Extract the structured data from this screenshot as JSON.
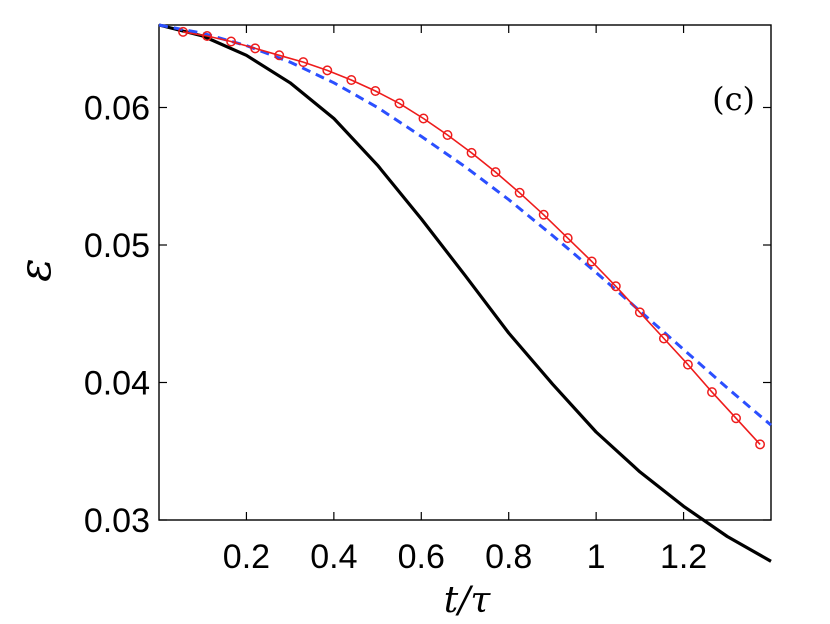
{
  "chart_data": {
    "type": "line",
    "xlabel": "t/τ",
    "ylabel": "ε",
    "annotation": "(c)",
    "xlim": [
      0,
      1.4
    ],
    "ylim": [
      0.03,
      0.066
    ],
    "xticks": [
      0.2,
      0.4,
      0.6,
      0.8,
      1,
      1.2
    ],
    "xtick_labels": [
      "0.2",
      "0.4",
      "0.6",
      "0.8",
      "1",
      "1.2"
    ],
    "yticks": [
      0.03,
      0.04,
      0.05,
      0.06
    ],
    "ytick_labels": [
      "0.03",
      "0.04",
      "0.05",
      "0.06"
    ],
    "grid": false,
    "series": [
      {
        "style": "solid",
        "color": "#000000",
        "x": [
          0,
          0.1,
          0.2,
          0.3,
          0.4,
          0.5,
          0.6,
          0.7,
          0.8,
          0.9,
          1.0,
          1.1,
          1.2,
          1.3,
          1.4
        ],
        "y": [
          0.066,
          0.0652,
          0.0638,
          0.0618,
          0.0592,
          0.0558,
          0.0519,
          0.0478,
          0.0436,
          0.0399,
          0.0364,
          0.0335,
          0.031,
          0.0288,
          0.027
        ]
      },
      {
        "style": "dashed",
        "color": "#2b4fff",
        "x": [
          0,
          0.1,
          0.2,
          0.3,
          0.4,
          0.5,
          0.6,
          0.7,
          0.8,
          0.9,
          1.0,
          1.1,
          1.2,
          1.3,
          1.4
        ],
        "y": [
          0.066,
          0.0654,
          0.0645,
          0.0633,
          0.0618,
          0.06,
          0.0579,
          0.0557,
          0.0533,
          0.0507,
          0.048,
          0.0452,
          0.0424,
          0.0396,
          0.0369
        ]
      },
      {
        "style": "solid",
        "marker": "circle",
        "color": "#ee1c1c",
        "x": [
          0.055,
          0.11,
          0.165,
          0.22,
          0.275,
          0.33,
          0.385,
          0.44,
          0.495,
          0.55,
          0.605,
          0.66,
          0.715,
          0.77,
          0.825,
          0.88,
          0.935,
          0.99,
          1.045,
          1.1,
          1.155,
          1.21,
          1.265,
          1.32,
          1.375
        ],
        "y": [
          0.0655,
          0.0652,
          0.0648,
          0.0643,
          0.0638,
          0.0633,
          0.0627,
          0.062,
          0.0612,
          0.0603,
          0.0592,
          0.058,
          0.0567,
          0.0553,
          0.0538,
          0.0522,
          0.0505,
          0.0488,
          0.047,
          0.0451,
          0.0432,
          0.0413,
          0.0393,
          0.0374,
          0.0355
        ]
      }
    ]
  }
}
